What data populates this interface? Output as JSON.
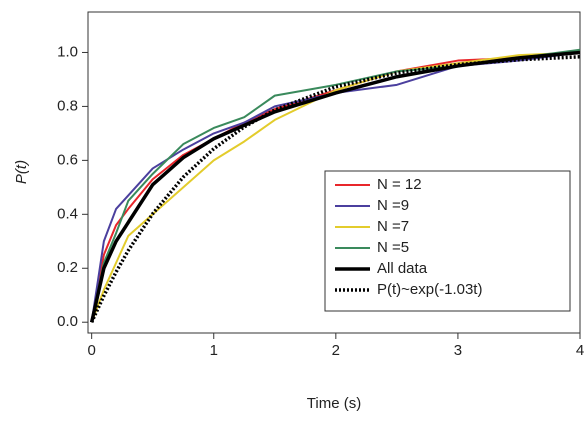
{
  "chart_data": {
    "type": "line",
    "x_label": "Time (s)",
    "y_label": "P(t)",
    "x": [
      0,
      0.1,
      0.2,
      0.3,
      0.5,
      0.75,
      1,
      1.25,
      1.5,
      2,
      2.5,
      3,
      3.5,
      4
    ],
    "series": [
      {
        "name": "N = 12",
        "color": "#e8262b",
        "width": 2,
        "values": [
          0,
          0.25,
          0.36,
          0.42,
          0.53,
          0.62,
          0.68,
          0.74,
          0.79,
          0.86,
          0.93,
          0.97,
          0.98,
          1.0
        ]
      },
      {
        "name": "N =9",
        "color": "#4b3f9e",
        "width": 2,
        "values": [
          0,
          0.3,
          0.42,
          0.47,
          0.57,
          0.64,
          0.7,
          0.74,
          0.8,
          0.85,
          0.88,
          0.95,
          0.97,
          1.0
        ]
      },
      {
        "name": "N =7",
        "color": "#e3cc2c",
        "width": 2,
        "values": [
          0,
          0.12,
          0.22,
          0.32,
          0.4,
          0.5,
          0.6,
          0.67,
          0.75,
          0.86,
          0.93,
          0.96,
          0.99,
          1.0
        ]
      },
      {
        "name": "N =5",
        "color": "#3a8a5c",
        "width": 2,
        "values": [
          0,
          0.22,
          0.33,
          0.45,
          0.55,
          0.66,
          0.72,
          0.76,
          0.84,
          0.88,
          0.93,
          0.95,
          0.98,
          1.01
        ]
      },
      {
        "name": "All data",
        "color": "#000000",
        "width": 3.5,
        "values": [
          0,
          0.2,
          0.3,
          0.37,
          0.51,
          0.61,
          0.68,
          0.73,
          0.78,
          0.85,
          0.91,
          0.95,
          0.98,
          1.0
        ]
      },
      {
        "name": "P(t)~exp(-1.03t)",
        "color": "#000000",
        "width": 3.5,
        "style": "dotted",
        "values": [
          0,
          0.098,
          0.186,
          0.266,
          0.402,
          0.538,
          0.643,
          0.724,
          0.787,
          0.873,
          0.924,
          0.955,
          0.973,
          0.984
        ]
      }
    ],
    "xlim": [
      -0.03,
      4
    ],
    "ylim": [
      -0.04,
      1.15
    ],
    "xticks": [
      0,
      1,
      2,
      3,
      4
    ],
    "yticks": [
      {
        "value": 0,
        "label": "0.0"
      },
      {
        "value": 0.2,
        "label": "0.2"
      },
      {
        "value": 0.4,
        "label": "0.4"
      },
      {
        "value": 0.6,
        "label": "0.6"
      },
      {
        "value": 0.8,
        "label": "0.8"
      },
      {
        "value": 1,
        "label": "1.0"
      }
    ],
    "legend": "lower-right"
  }
}
